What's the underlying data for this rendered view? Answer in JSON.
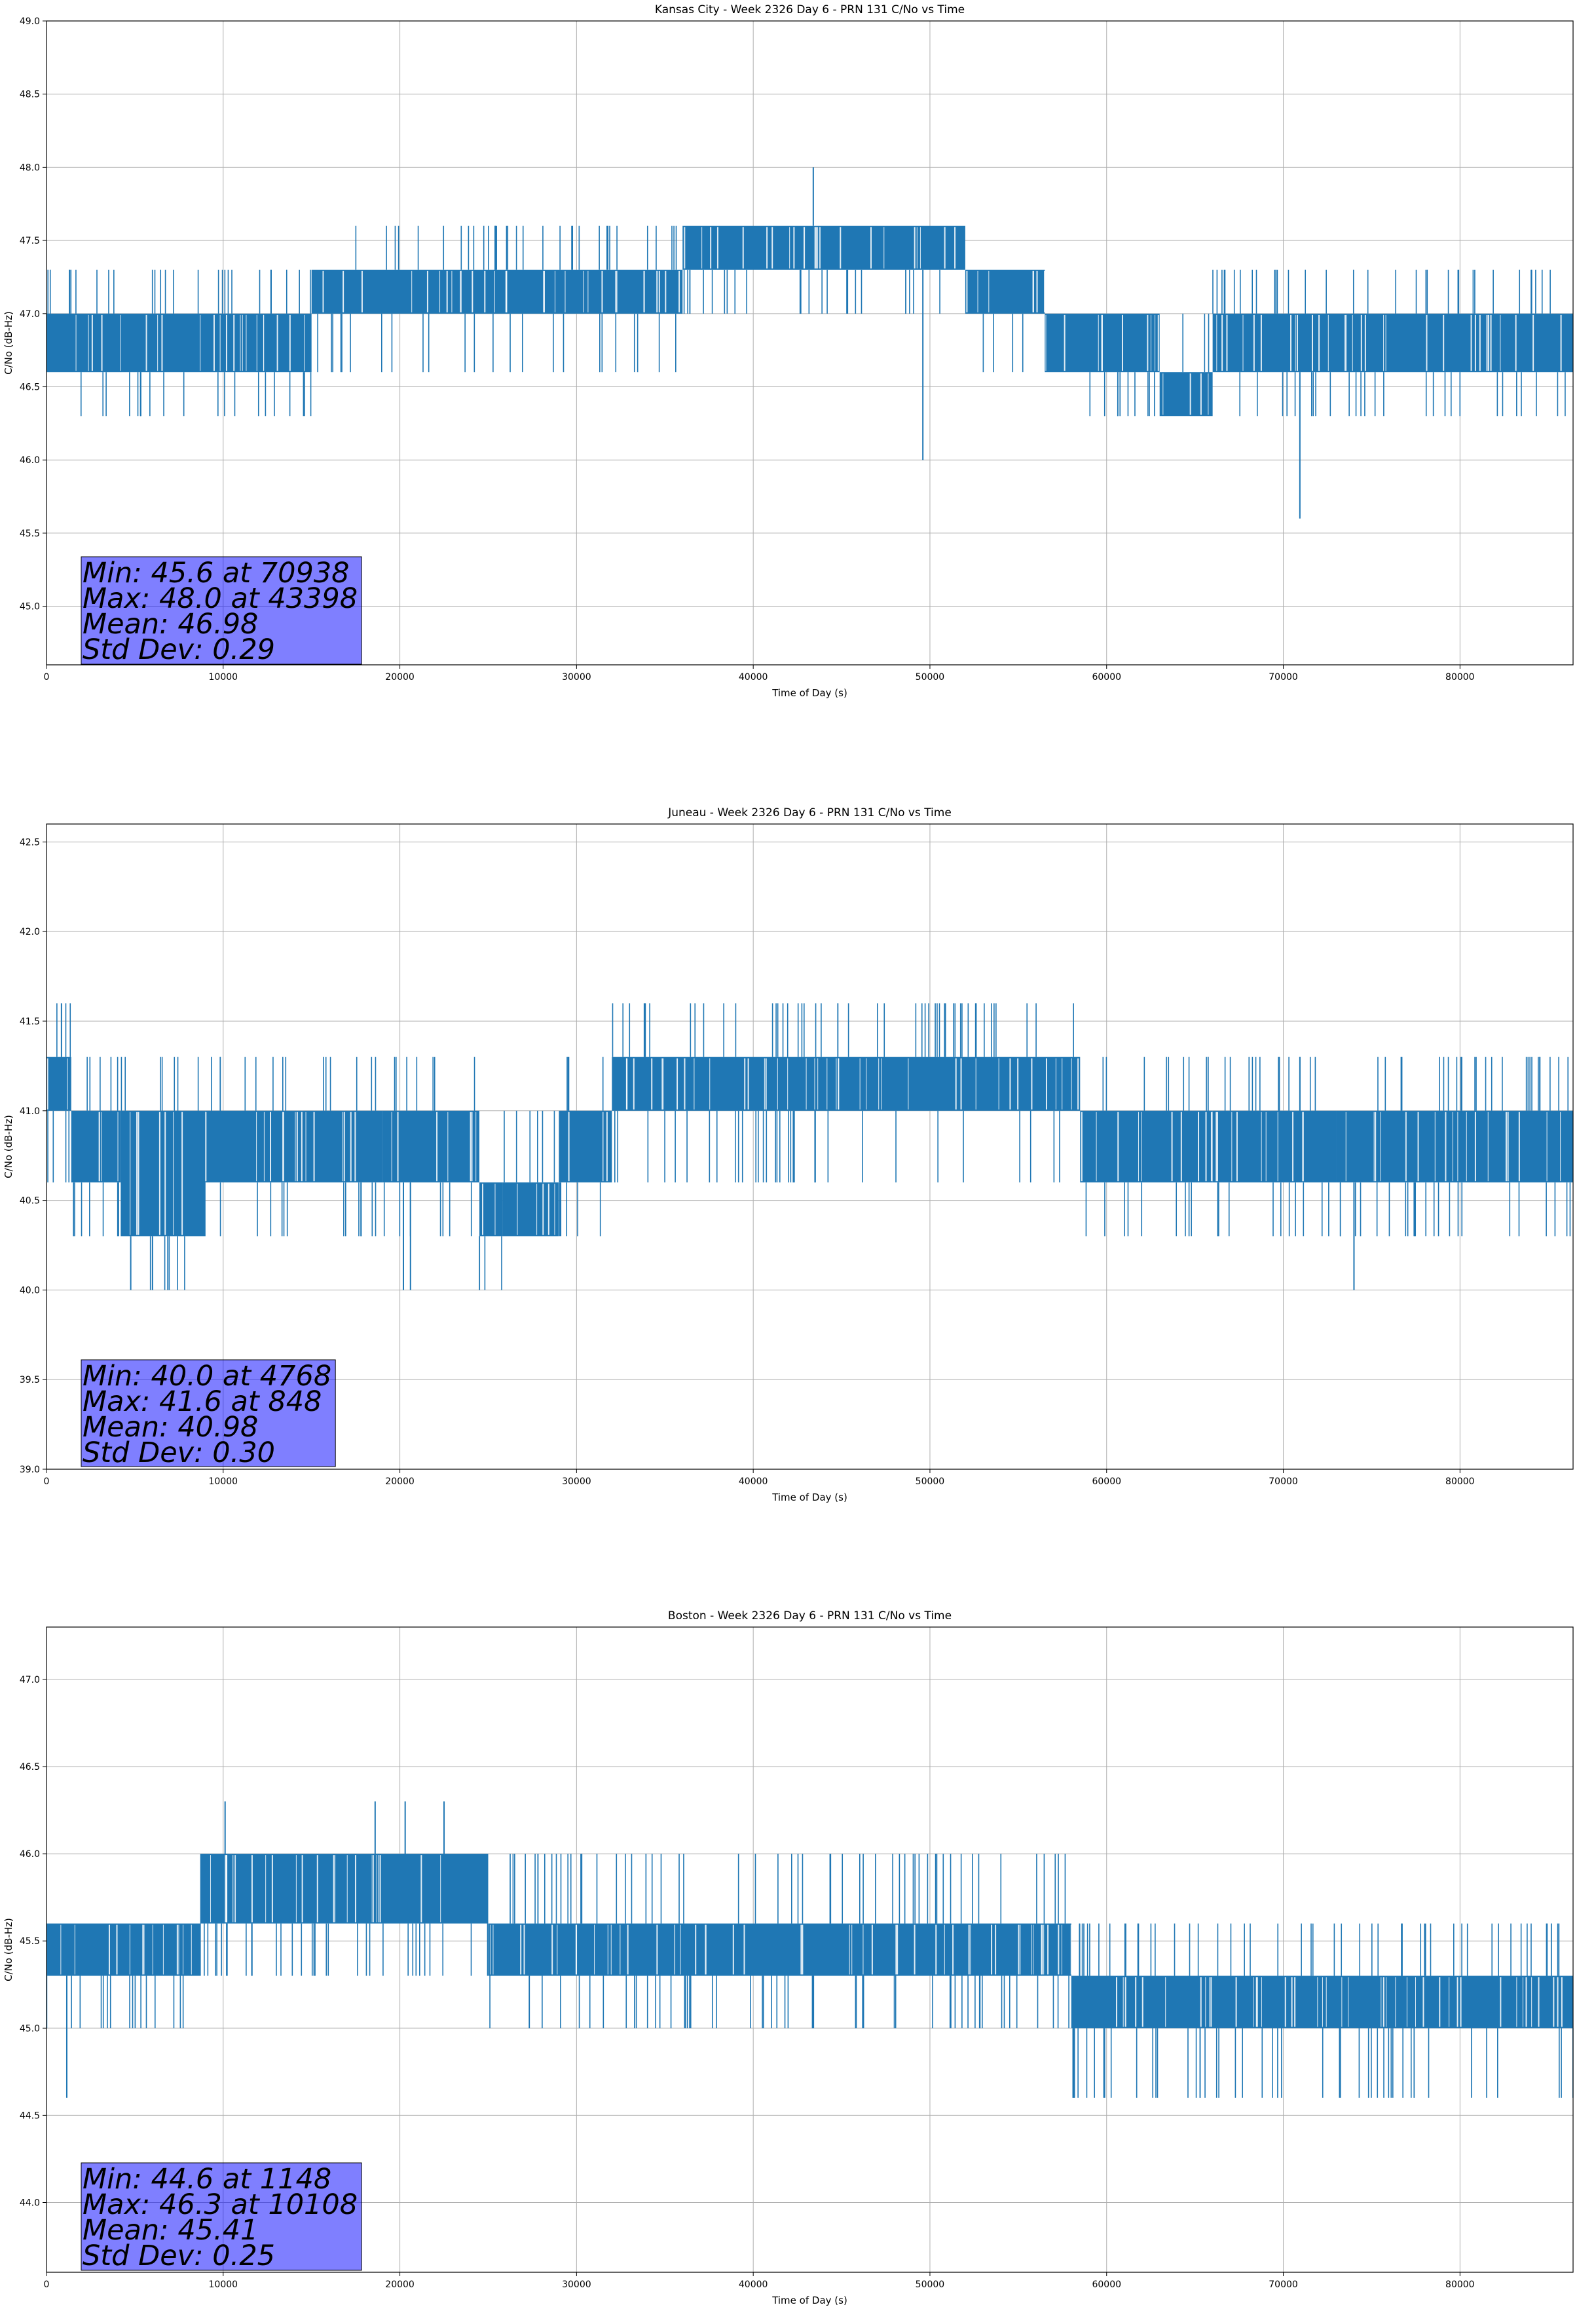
{
  "chart_data": [
    {
      "type": "line",
      "title": "Kansas City - Week 2326 Day 6 - PRN 131 C/No vs Time",
      "xlabel": "Time of Day (s)",
      "ylabel": "C/No (dB-Hz)",
      "xlim": [
        0,
        86400
      ],
      "ylim": [
        44.6,
        49.0
      ],
      "xticks": [
        0,
        10000,
        20000,
        30000,
        40000,
        50000,
        60000,
        70000,
        80000
      ],
      "yticks": [
        45.0,
        45.5,
        46.0,
        46.5,
        47.0,
        47.5,
        48.0,
        48.5,
        49.0
      ],
      "grid": true,
      "series_color": "#1f77b4",
      "bands": [
        {
          "x": [
            0,
            15000
          ],
          "base": [
            46.6,
            47.0
          ],
          "ups": [
            47.3
          ],
          "downs": [
            46.3
          ]
        },
        {
          "x": [
            15000,
            36000
          ],
          "base": [
            47.0,
            47.3
          ],
          "ups": [
            47.6
          ],
          "downs": [
            46.6
          ]
        },
        {
          "x": [
            36000,
            52000
          ],
          "base": [
            47.3,
            47.6
          ],
          "ups": [],
          "downs": [
            47.0
          ]
        },
        {
          "x": [
            52000,
            56500
          ],
          "base": [
            47.0,
            47.3
          ],
          "ups": [],
          "downs": [
            46.6
          ]
        },
        {
          "x": [
            56500,
            63000
          ],
          "base": [
            46.6,
            47.0
          ],
          "ups": [],
          "downs": [
            46.3
          ]
        },
        {
          "x": [
            63000,
            66000
          ],
          "base": [
            46.3,
            46.6
          ],
          "ups": [
            47.0
          ],
          "downs": []
        },
        {
          "x": [
            66000,
            86400
          ],
          "base": [
            46.6,
            47.0
          ],
          "ups": [
            47.3
          ],
          "downs": [
            46.3
          ]
        }
      ],
      "spikes": [
        {
          "x": 43398,
          "y": 48.0
        },
        {
          "x": 49600,
          "y": 46.0
        },
        {
          "x": 70938,
          "y": 45.6
        }
      ],
      "stats": {
        "min": "Min: 45.6 at 70938",
        "max": "Max: 48.0 at 43398",
        "mean": "Mean: 46.98",
        "std": "Std Dev: 0.29"
      }
    },
    {
      "type": "line",
      "title": "Juneau - Week 2326 Day 6 - PRN 131 C/No vs Time",
      "xlabel": "Time of Day (s)",
      "ylabel": "C/No (dB-Hz)",
      "xlim": [
        0,
        86400
      ],
      "ylim": [
        39.0,
        42.6
      ],
      "xticks": [
        0,
        10000,
        20000,
        30000,
        40000,
        50000,
        60000,
        70000,
        80000
      ],
      "yticks": [
        39.0,
        39.5,
        40.0,
        40.5,
        41.0,
        41.5,
        42.0,
        42.5
      ],
      "grid": true,
      "series_color": "#1f77b4",
      "bands": [
        {
          "x": [
            0,
            1400
          ],
          "base": [
            41.0,
            41.3
          ],
          "ups": [
            41.6
          ],
          "downs": [
            40.6
          ]
        },
        {
          "x": [
            1400,
            4200
          ],
          "base": [
            40.6,
            41.0
          ],
          "ups": [
            41.3
          ],
          "downs": [
            40.3
          ]
        },
        {
          "x": [
            4200,
            9000
          ],
          "base": [
            40.3,
            41.0
          ],
          "ups": [
            41.3
          ],
          "downs": [
            40.0
          ]
        },
        {
          "x": [
            9000,
            19000
          ],
          "base": [
            40.6,
            41.0
          ],
          "ups": [
            41.3
          ],
          "downs": [
            40.3
          ]
        },
        {
          "x": [
            19000,
            24500
          ],
          "base": [
            40.6,
            41.0
          ],
          "ups": [
            41.3
          ],
          "downs": [
            40.3
          ]
        },
        {
          "x": [
            24500,
            25800
          ],
          "base": [
            40.3,
            40.6
          ],
          "ups": [
            40.6
          ],
          "downs": [
            40.0
          ]
        },
        {
          "x": [
            25800,
            29000
          ],
          "base": [
            40.3,
            40.6
          ],
          "ups": [
            41.0
          ],
          "downs": []
        },
        {
          "x": [
            29000,
            32000
          ],
          "base": [
            40.6,
            41.0
          ],
          "ups": [
            41.3
          ],
          "downs": [
            40.3
          ]
        },
        {
          "x": [
            32000,
            58500
          ],
          "base": [
            41.0,
            41.3
          ],
          "ups": [
            41.6
          ],
          "downs": [
            40.6
          ]
        },
        {
          "x": [
            58500,
            66000
          ],
          "base": [
            40.6,
            41.0
          ],
          "ups": [
            41.3
          ],
          "downs": [
            40.3
          ]
        },
        {
          "x": [
            66000,
            73000
          ],
          "base": [
            40.6,
            41.0
          ],
          "ups": [
            41.3
          ],
          "downs": [
            40.3
          ]
        },
        {
          "x": [
            73000,
            86400
          ],
          "base": [
            40.6,
            41.0
          ],
          "ups": [
            41.3
          ],
          "downs": [
            40.3
          ]
        }
      ],
      "spikes": [
        {
          "x": 848,
          "y": 41.6
        },
        {
          "x": 4768,
          "y": 40.0
        },
        {
          "x": 6000,
          "y": 40.0
        },
        {
          "x": 20200,
          "y": 40.0
        },
        {
          "x": 20600,
          "y": 40.0
        },
        {
          "x": 74000,
          "y": 40.0
        }
      ],
      "stats": {
        "min": "Min: 40.0 at 4768",
        "max": "Max: 41.6 at 848",
        "mean": "Mean: 40.98",
        "std": "Std Dev: 0.30"
      }
    },
    {
      "type": "line",
      "title": "Boston - Week 2326 Day 6 - PRN 131 C/No vs Time",
      "xlabel": "Time of Day (s)",
      "ylabel": "C/No (dB-Hz)",
      "xlim": [
        0,
        86400
      ],
      "ylim": [
        43.6,
        47.3
      ],
      "xticks": [
        0,
        10000,
        20000,
        30000,
        40000,
        50000,
        60000,
        70000,
        80000
      ],
      "yticks": [
        44.0,
        44.5,
        45.0,
        45.5,
        46.0,
        46.5,
        47.0
      ],
      "grid": true,
      "series_color": "#1f77b4",
      "bands": [
        {
          "x": [
            0,
            8700
          ],
          "base": [
            45.3,
            45.6
          ],
          "ups": [],
          "downs": [
            45.0
          ]
        },
        {
          "x": [
            8700,
            25000
          ],
          "base": [
            45.6,
            46.0
          ],
          "ups": [],
          "downs": [
            45.3
          ]
        },
        {
          "x": [
            25000,
            58000
          ],
          "base": [
            45.3,
            45.6
          ],
          "ups": [
            46.0
          ],
          "downs": [
            45.0
          ]
        },
        {
          "x": [
            58000,
            86400
          ],
          "base": [
            45.0,
            45.3
          ],
          "ups": [
            45.6
          ],
          "downs": [
            44.6
          ]
        }
      ],
      "spikes": [
        {
          "x": 1148,
          "y": 44.6
        },
        {
          "x": 10108,
          "y": 46.3
        },
        {
          "x": 18600,
          "y": 46.3
        },
        {
          "x": 20300,
          "y": 46.3
        },
        {
          "x": 22500,
          "y": 46.3
        }
      ],
      "stats": {
        "min": "Min: 44.6 at 1148",
        "max": "Max: 46.3 at 10108",
        "mean": "Mean: 45.41",
        "std": "Std Dev: 0.25"
      }
    }
  ]
}
